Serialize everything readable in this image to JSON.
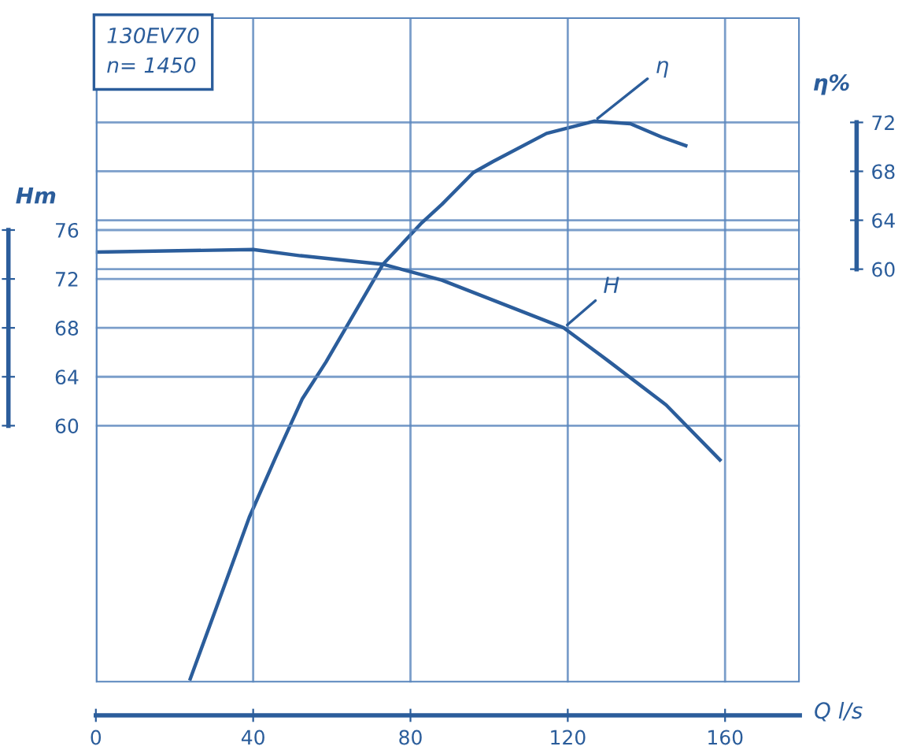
{
  "chart_data": {
    "type": "line",
    "xlabel": "Q l/s",
    "ylabel": "Hm",
    "y2label": "η%",
    "xlim": [
      0,
      179
    ],
    "xticks": [
      0,
      40,
      80,
      120,
      160
    ],
    "ylim": [
      39,
      93.4
    ],
    "yticks": [
      60,
      64,
      68,
      72,
      76
    ],
    "y2lim": [
      26.2,
      80.6
    ],
    "y2ticks": [
      60,
      64,
      68,
      72
    ],
    "grid": true,
    "line_style": "solid",
    "marker": "none",
    "series": [
      {
        "color": "#2b5d9b",
        "x": [
          0,
          40,
          52,
          73,
          88,
          119,
          130.7,
          145,
          158.7
        ],
        "values": [
          74.2,
          74.4,
          73.9,
          73.2,
          71.9,
          68.0,
          65.2,
          61.7,
          57.2
        ]
      },
      {
        "color": "#2b5d9b",
        "axis": "y2",
        "x": [
          24,
          32.9,
          39,
          45.7,
          52.5,
          58.5,
          73,
          82.6,
          88,
          96,
          101,
          114.6,
          126.7,
          135.9,
          143.9,
          150
        ],
        "values": [
          26.5,
          34.3,
          39.7,
          44.6,
          49.4,
          52.4,
          60.4,
          63.7,
          65.3,
          67.9,
          68.8,
          71.1,
          72.1,
          71.9,
          70.8,
          70.1
        ]
      }
    ],
    "annotations": [
      "130EV70",
      "n= 1450",
      {
        "text": "H",
        "x": 119,
        "y": 68.0
      },
      {
        "text": "η",
        "x": 126.7,
        "y": 84.9
      }
    ]
  }
}
